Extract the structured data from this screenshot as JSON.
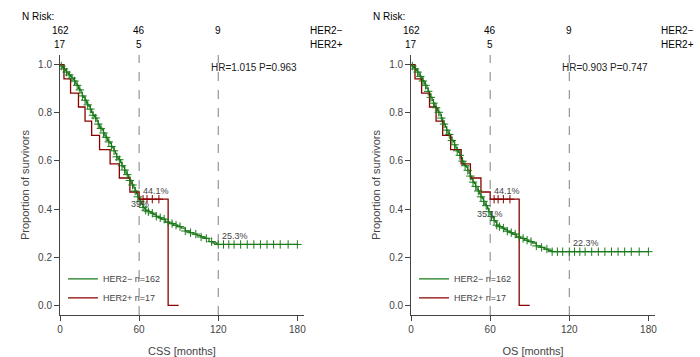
{
  "chart_data": [
    {
      "type": "step",
      "xlabel": "CSS [months]",
      "ylabel": "Proportion of survivors",
      "xlim": [
        0,
        185
      ],
      "ylim": [
        -0.04,
        1.04
      ],
      "xticks": [
        0,
        60,
        120,
        180
      ],
      "yticks": [
        {
          "value": 0,
          "label": "0.0"
        },
        0.2,
        0.4,
        0.6,
        0.8,
        {
          "value": 1,
          "label": "1.0"
        }
      ],
      "grid": false,
      "legend": "lower left",
      "vlines": [
        60,
        120
      ],
      "annotations": [
        {
          "x": 53,
          "y": 0.395,
          "text": "39%"
        },
        {
          "x": 62,
          "y": 0.451,
          "text": "44.1%"
        },
        {
          "x": 122,
          "y": 0.263,
          "text": "25.3%"
        },
        {
          "text": "HR=1.015 P=0.963"
        }
      ],
      "at_risk": {
        "label": "N Risk:",
        "x": [
          0,
          60,
          120
        ],
        "rows": [
          {
            "name": "HER2−",
            "values": [
              162,
              46,
              9
            ]
          },
          {
            "name": "HER2+",
            "values": [
              17,
              5,
              null
            ]
          }
        ]
      },
      "series": [
        {
          "name": "HER2− n=162",
          "color": "#1a7a1a",
          "line_style": "solid",
          "x": [
            0,
            1,
            2,
            3,
            4,
            5,
            6,
            7,
            8,
            9,
            10,
            11,
            12,
            13,
            14,
            15,
            16,
            17,
            18,
            19,
            20,
            21,
            22,
            23,
            24,
            25,
            26,
            27,
            28,
            29,
            30,
            31,
            32,
            33,
            34,
            35,
            36,
            37,
            38,
            39,
            40,
            41,
            42,
            43,
            44,
            45,
            46,
            47,
            48,
            49,
            50,
            51,
            52,
            53,
            54,
            55,
            56,
            57,
            58,
            59,
            60,
            61,
            62,
            63,
            64,
            65,
            67,
            69,
            71,
            73,
            75,
            77,
            80,
            83,
            86,
            89,
            92,
            95,
            98,
            101,
            104,
            107,
            110,
            113,
            116,
            119,
            122,
            125,
            128,
            131,
            134,
            137,
            140,
            143,
            146,
            150,
            155,
            160,
            165,
            170,
            175,
            180
          ],
          "values": [
            1.0,
            0.994,
            0.988,
            0.982,
            0.975,
            0.969,
            0.963,
            0.957,
            0.951,
            0.944,
            0.938,
            0.932,
            0.92,
            0.914,
            0.901,
            0.895,
            0.883,
            0.87,
            0.864,
            0.852,
            0.84,
            0.833,
            0.827,
            0.815,
            0.802,
            0.79,
            0.784,
            0.778,
            0.765,
            0.753,
            0.741,
            0.735,
            0.728,
            0.716,
            0.704,
            0.698,
            0.685,
            0.679,
            0.673,
            0.66,
            0.654,
            0.642,
            0.63,
            0.617,
            0.611,
            0.605,
            0.593,
            0.58,
            0.574,
            0.562,
            0.549,
            0.543,
            0.531,
            0.519,
            0.506,
            0.5,
            0.488,
            0.475,
            0.463,
            0.451,
            0.439,
            0.432,
            0.42,
            0.407,
            0.401,
            0.395,
            0.389,
            0.383,
            0.377,
            0.37,
            0.364,
            0.358,
            0.346,
            0.34,
            0.333,
            0.327,
            0.321,
            0.309,
            0.302,
            0.296,
            0.29,
            0.284,
            0.278,
            0.265,
            0.259,
            0.253,
            0.253,
            0.253,
            0.253,
            0.253,
            0.253,
            0.253,
            0.253,
            0.253,
            0.253,
            0.253,
            0.253,
            0.253,
            0.253,
            0.253,
            0.253,
            0.253
          ]
        },
        {
          "name": "HER2+ n=17",
          "color": "#8b0000",
          "line_style": "solid",
          "x": [
            0,
            3,
            8,
            14,
            19,
            24,
            30,
            38,
            45,
            53,
            60,
            63,
            66,
            70,
            75,
            82,
            90
          ],
          "values": [
            1.0,
            0.941,
            0.882,
            0.824,
            0.765,
            0.706,
            0.647,
            0.588,
            0.529,
            0.471,
            0.441,
            0.441,
            0.441,
            0.441,
            0.441,
            0.0,
            0.0
          ]
        },
        {
          "type": "scatter",
          "marker": "plus",
          "color": "#1a7a1a",
          "x": [
            1,
            3,
            5,
            7,
            9,
            11,
            13,
            15,
            17,
            19,
            21,
            23,
            25,
            27,
            29,
            31,
            33,
            35,
            37,
            39,
            41,
            43,
            45,
            47,
            49,
            51,
            53,
            55,
            57,
            59,
            61,
            63,
            65,
            67,
            70,
            73,
            76,
            79,
            82,
            85,
            88,
            91,
            95,
            99,
            103,
            107,
            111,
            115,
            120,
            124,
            128,
            132,
            137,
            142,
            147,
            152,
            157,
            162,
            167,
            173,
            180
          ],
          "values": [
            0.994,
            0.982,
            0.969,
            0.957,
            0.944,
            0.932,
            0.914,
            0.895,
            0.87,
            0.852,
            0.833,
            0.815,
            0.79,
            0.778,
            0.753,
            0.735,
            0.716,
            0.698,
            0.679,
            0.66,
            0.642,
            0.617,
            0.605,
            0.58,
            0.562,
            0.543,
            0.519,
            0.5,
            0.475,
            0.451,
            0.432,
            0.407,
            0.395,
            0.389,
            0.383,
            0.37,
            0.364,
            0.358,
            0.346,
            0.34,
            0.333,
            0.327,
            0.309,
            0.302,
            0.296,
            0.284,
            0.278,
            0.265,
            0.253,
            0.253,
            0.253,
            0.253,
            0.253,
            0.253,
            0.253,
            0.253,
            0.253,
            0.253,
            0.253,
            0.253,
            0.253
          ]
        },
        {
          "type": "scatter",
          "marker": "plus",
          "color": "#8b0000",
          "x": [
            63,
            66,
            70,
            75
          ],
          "values": [
            0.441,
            0.441,
            0.441,
            0.441
          ]
        }
      ]
    },
    {
      "type": "step",
      "xlabel": "OS [months]",
      "ylabel": "Proportion of survivors",
      "xlim": [
        0,
        185
      ],
      "ylim": [
        -0.04,
        1.04
      ],
      "xticks": [
        0,
        60,
        120,
        180
      ],
      "yticks": [
        {
          "value": 0,
          "label": "0.0"
        },
        0.2,
        0.4,
        0.6,
        0.8,
        {
          "value": 1,
          "label": "1.0"
        }
      ],
      "grid": false,
      "legend": "lower left",
      "vlines": [
        60,
        120
      ],
      "annotations": [
        {
          "x": 49,
          "y": 0.356,
          "text": "35.1%"
        },
        {
          "x": 62,
          "y": 0.451,
          "text": "44.1%"
        },
        {
          "x": 122,
          "y": 0.233,
          "text": "22.3%"
        },
        {
          "text": "HR=0.903 P=0.747"
        }
      ],
      "at_risk": {
        "label": "N Risk:",
        "x": [
          0,
          60,
          120
        ],
        "rows": [
          {
            "name": "HER2−",
            "values": [
              162,
              46,
              9
            ]
          },
          {
            "name": "HER2+",
            "values": [
              17,
              5,
              null
            ]
          }
        ]
      },
      "series": [
        {
          "name": "HER2− n=162",
          "color": "#1a7a1a",
          "line_style": "solid",
          "x": [
            0,
            1,
            2,
            3,
            4,
            5,
            6,
            7,
            8,
            9,
            10,
            11,
            12,
            13,
            14,
            15,
            16,
            17,
            18,
            19,
            20,
            21,
            22,
            23,
            24,
            25,
            26,
            27,
            28,
            29,
            30,
            31,
            32,
            33,
            34,
            35,
            36,
            37,
            38,
            39,
            40,
            41,
            42,
            43,
            44,
            45,
            46,
            47,
            48,
            49,
            50,
            51,
            52,
            53,
            54,
            55,
            56,
            57,
            58,
            59,
            60,
            61,
            62,
            63,
            64,
            65,
            67,
            69,
            71,
            73,
            75,
            77,
            80,
            83,
            86,
            89,
            92,
            95,
            98,
            101,
            104,
            107,
            110,
            113,
            116,
            119,
            122,
            125,
            128,
            131,
            134,
            137,
            140,
            143,
            146,
            150,
            155,
            160,
            165,
            170,
            175,
            180
          ],
          "values": [
            1.0,
            0.994,
            0.988,
            0.982,
            0.975,
            0.969,
            0.957,
            0.951,
            0.944,
            0.932,
            0.92,
            0.914,
            0.901,
            0.889,
            0.877,
            0.864,
            0.852,
            0.84,
            0.827,
            0.821,
            0.808,
            0.802,
            0.79,
            0.778,
            0.765,
            0.753,
            0.741,
            0.728,
            0.716,
            0.71,
            0.698,
            0.685,
            0.679,
            0.667,
            0.654,
            0.642,
            0.636,
            0.623,
            0.611,
            0.599,
            0.586,
            0.58,
            0.574,
            0.561,
            0.549,
            0.537,
            0.525,
            0.512,
            0.506,
            0.494,
            0.481,
            0.475,
            0.463,
            0.451,
            0.444,
            0.432,
            0.42,
            0.414,
            0.401,
            0.389,
            0.377,
            0.37,
            0.364,
            0.352,
            0.346,
            0.333,
            0.327,
            0.321,
            0.315,
            0.308,
            0.302,
            0.296,
            0.284,
            0.278,
            0.271,
            0.265,
            0.259,
            0.247,
            0.241,
            0.234,
            0.228,
            0.223,
            0.223,
            0.223,
            0.223,
            0.223,
            0.223,
            0.223,
            0.223,
            0.223,
            0.223,
            0.223,
            0.223,
            0.223,
            0.223,
            0.223,
            0.223,
            0.223,
            0.223,
            0.223,
            0.223,
            0.223
          ]
        },
        {
          "name": "HER2+ n=17",
          "color": "#8b0000",
          "line_style": "solid",
          "x": [
            0,
            3,
            8,
            14,
            19,
            24,
            30,
            38,
            45,
            53,
            60,
            63,
            66,
            70,
            75,
            82,
            90
          ],
          "values": [
            1.0,
            0.941,
            0.882,
            0.824,
            0.765,
            0.706,
            0.647,
            0.588,
            0.529,
            0.471,
            0.441,
            0.441,
            0.441,
            0.441,
            0.441,
            0.0,
            0.0
          ]
        },
        {
          "type": "scatter",
          "marker": "plus",
          "color": "#1a7a1a",
          "x": [
            1,
            3,
            5,
            7,
            9,
            11,
            13,
            15,
            17,
            19,
            21,
            23,
            25,
            27,
            29,
            31,
            33,
            35,
            37,
            39,
            41,
            43,
            45,
            47,
            49,
            51,
            53,
            55,
            57,
            59,
            61,
            63,
            65,
            67,
            70,
            73,
            76,
            79,
            82,
            85,
            88,
            91,
            95,
            99,
            103,
            107,
            111,
            115,
            120,
            124,
            128,
            132,
            137,
            142,
            147,
            152,
            157,
            162,
            167,
            173,
            180
          ],
          "values": [
            0.994,
            0.982,
            0.969,
            0.951,
            0.932,
            0.914,
            0.889,
            0.864,
            0.84,
            0.821,
            0.802,
            0.778,
            0.753,
            0.728,
            0.71,
            0.685,
            0.667,
            0.642,
            0.623,
            0.599,
            0.58,
            0.561,
            0.537,
            0.512,
            0.494,
            0.475,
            0.451,
            0.432,
            0.414,
            0.389,
            0.37,
            0.352,
            0.333,
            0.327,
            0.321,
            0.308,
            0.302,
            0.296,
            0.284,
            0.278,
            0.271,
            0.265,
            0.247,
            0.241,
            0.234,
            0.223,
            0.223,
            0.223,
            0.223,
            0.223,
            0.223,
            0.223,
            0.223,
            0.223,
            0.223,
            0.223,
            0.223,
            0.223,
            0.223,
            0.223,
            0.223
          ]
        },
        {
          "type": "scatter",
          "marker": "plus",
          "color": "#8b0000",
          "x": [
            63,
            66,
            70,
            75
          ],
          "values": [
            0.441,
            0.441,
            0.441,
            0.441
          ]
        }
      ]
    }
  ]
}
